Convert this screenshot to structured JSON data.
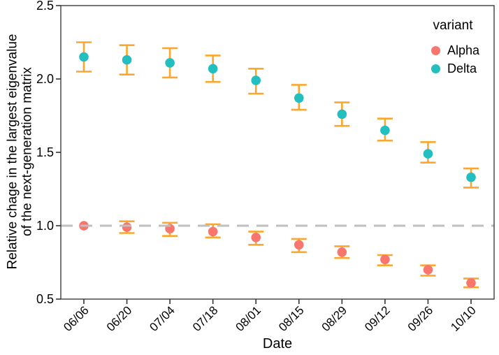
{
  "chart_data": {
    "type": "scatter",
    "title": "",
    "xlabel": "Date",
    "ylabel": "Relative chage in the largest eigenvalue of the next-generation matrix",
    "ylabel_lines": [
      "Relative chage in the largest eigenvalue",
      "of the next-generation matrix"
    ],
    "categories": [
      "06/06",
      "06/20",
      "07/04",
      "07/18",
      "08/01",
      "08/15",
      "08/29",
      "09/12",
      "09/26",
      "10/10"
    ],
    "ylim": [
      0.5,
      2.5
    ],
    "yticks": [
      0.5,
      1.0,
      1.5,
      2.0,
      2.5
    ],
    "ytick_labels": [
      "0.5",
      "1.0",
      "1.5",
      "2.0",
      "2.5"
    ],
    "grid": false,
    "panel_border": true,
    "reference_line": {
      "y": 1.0,
      "style": "dashed",
      "color": "#BFBFBF"
    },
    "errorbar_color": "#FBA72D",
    "legend": {
      "title": "variant",
      "position": "top-right-inside"
    },
    "series": [
      {
        "name": "Alpha",
        "color": "#F8766D",
        "values": [
          1.0,
          0.99,
          0.98,
          0.96,
          0.92,
          0.87,
          0.82,
          0.77,
          0.7,
          0.61
        ],
        "lower": [
          1.0,
          0.95,
          0.93,
          0.92,
          0.87,
          0.82,
          0.78,
          0.73,
          0.66,
          0.58
        ],
        "upper": [
          1.0,
          1.03,
          1.02,
          1.01,
          0.96,
          0.91,
          0.86,
          0.8,
          0.73,
          0.64
        ]
      },
      {
        "name": "Delta",
        "color": "#22BEC0",
        "values": [
          2.15,
          2.13,
          2.11,
          2.07,
          1.99,
          1.87,
          1.76,
          1.65,
          1.49,
          1.33
        ],
        "lower": [
          2.05,
          2.03,
          2.01,
          1.98,
          1.9,
          1.79,
          1.68,
          1.58,
          1.43,
          1.26
        ],
        "upper": [
          2.25,
          2.23,
          2.21,
          2.16,
          2.07,
          1.96,
          1.84,
          1.73,
          1.57,
          1.39
        ]
      }
    ]
  }
}
